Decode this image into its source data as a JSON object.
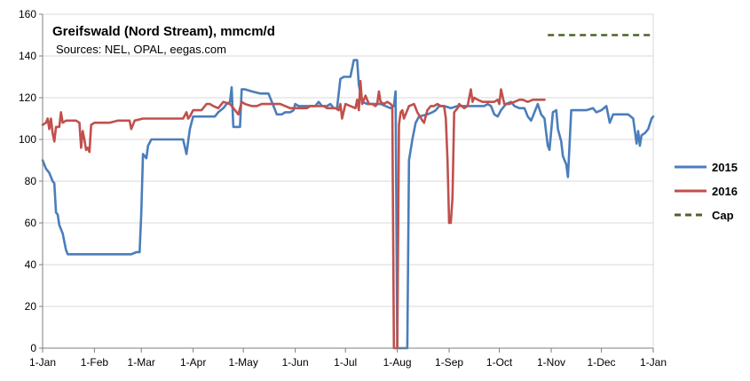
{
  "chart_data": {
    "type": "line",
    "title": "Greifswald (Nord Stream), mmcm/d",
    "subtitle": "Sources:  NEL, OPAL, eegas.com",
    "ylim": [
      0,
      160
    ],
    "yticks": [
      0,
      20,
      40,
      60,
      80,
      100,
      120,
      140,
      160
    ],
    "xlim": [
      0,
      365
    ],
    "xticks": [
      {
        "label": "1-Jan",
        "day": 0
      },
      {
        "label": "1-Feb",
        "day": 31
      },
      {
        "label": "1-Mar",
        "day": 59
      },
      {
        "label": "1-Apr",
        "day": 90
      },
      {
        "label": "1-May",
        "day": 120
      },
      {
        "label": "1-Jun",
        "day": 151
      },
      {
        "label": "1-Jul",
        "day": 181
      },
      {
        "label": "1-Aug",
        "day": 212
      },
      {
        "label": "1-Sep",
        "day": 243
      },
      {
        "label": "1-Oct",
        "day": 273
      },
      {
        "label": "1-Nov",
        "day": 304
      },
      {
        "label": "1-Dec",
        "day": 334
      },
      {
        "label": "1-Jan",
        "day": 365
      }
    ],
    "grid": "horizontal",
    "legend_position": "right",
    "series": [
      {
        "name": "2015",
        "color": "#4a7ebb",
        "dash": "solid",
        "points": [
          [
            0,
            90
          ],
          [
            2,
            86
          ],
          [
            4,
            84
          ],
          [
            6,
            80
          ],
          [
            7,
            79
          ],
          [
            8,
            65
          ],
          [
            9,
            64
          ],
          [
            10,
            59
          ],
          [
            12,
            55
          ],
          [
            14,
            47
          ],
          [
            15,
            45
          ],
          [
            20,
            45
          ],
          [
            25,
            45
          ],
          [
            30,
            45
          ],
          [
            35,
            45
          ],
          [
            40,
            45
          ],
          [
            45,
            45
          ],
          [
            50,
            45
          ],
          [
            53,
            45
          ],
          [
            56,
            46
          ],
          [
            58,
            46
          ],
          [
            59,
            65
          ],
          [
            60,
            93
          ],
          [
            62,
            91
          ],
          [
            63,
            97
          ],
          [
            65,
            100
          ],
          [
            70,
            100
          ],
          [
            75,
            100
          ],
          [
            80,
            100
          ],
          [
            84,
            100
          ],
          [
            86,
            93
          ],
          [
            88,
            105
          ],
          [
            90,
            111
          ],
          [
            95,
            111
          ],
          [
            100,
            111
          ],
          [
            103,
            111
          ],
          [
            105,
            113
          ],
          [
            108,
            115
          ],
          [
            110,
            117
          ],
          [
            112,
            118
          ],
          [
            113,
            125
          ],
          [
            114,
            106
          ],
          [
            116,
            106
          ],
          [
            118,
            106
          ],
          [
            119,
            124
          ],
          [
            121,
            124
          ],
          [
            125,
            123
          ],
          [
            130,
            122
          ],
          [
            133,
            122
          ],
          [
            135,
            122
          ],
          [
            140,
            112
          ],
          [
            143,
            112
          ],
          [
            145,
            113
          ],
          [
            148,
            113
          ],
          [
            150,
            114
          ],
          [
            151,
            117
          ],
          [
            153,
            116
          ],
          [
            155,
            116
          ],
          [
            160,
            116
          ],
          [
            163,
            116
          ],
          [
            165,
            118
          ],
          [
            167,
            116
          ],
          [
            170,
            116
          ],
          [
            172,
            117
          ],
          [
            174,
            115
          ],
          [
            176,
            115
          ],
          [
            178,
            129
          ],
          [
            180,
            130
          ],
          [
            184,
            130
          ],
          [
            186,
            138
          ],
          [
            188,
            138
          ],
          [
            189,
            126
          ],
          [
            191,
            118
          ],
          [
            194,
            117
          ],
          [
            198,
            117
          ],
          [
            202,
            117
          ],
          [
            205,
            116
          ],
          [
            208,
            115
          ],
          [
            210,
            116
          ],
          [
            211,
            123
          ],
          [
            212,
            0
          ],
          [
            216,
            0
          ],
          [
            218,
            0
          ],
          [
            219,
            90
          ],
          [
            221,
            100
          ],
          [
            223,
            108
          ],
          [
            225,
            111
          ],
          [
            230,
            112
          ],
          [
            233,
            113
          ],
          [
            235,
            114
          ],
          [
            237,
            116
          ],
          [
            240,
            116
          ],
          [
            244,
            115
          ],
          [
            248,
            116
          ],
          [
            252,
            116
          ],
          [
            256,
            116
          ],
          [
            260,
            116
          ],
          [
            264,
            116
          ],
          [
            266,
            117
          ],
          [
            268,
            116
          ],
          [
            270,
            112
          ],
          [
            272,
            111
          ],
          [
            274,
            114
          ],
          [
            277,
            117
          ],
          [
            280,
            118
          ],
          [
            282,
            116
          ],
          [
            285,
            115
          ],
          [
            288,
            115
          ],
          [
            290,
            111
          ],
          [
            292,
            109
          ],
          [
            294,
            113
          ],
          [
            296,
            117
          ],
          [
            298,
            112
          ],
          [
            300,
            110
          ],
          [
            301,
            103
          ],
          [
            302,
            97
          ],
          [
            303,
            95
          ],
          [
            305,
            113
          ],
          [
            307,
            114
          ],
          [
            308,
            105
          ],
          [
            310,
            99
          ],
          [
            311,
            92
          ],
          [
            312,
            90
          ],
          [
            313,
            88
          ],
          [
            314,
            82
          ],
          [
            316,
            114
          ],
          [
            320,
            114
          ],
          [
            325,
            114
          ],
          [
            329,
            115
          ],
          [
            331,
            113
          ],
          [
            334,
            114
          ],
          [
            337,
            116
          ],
          [
            339,
            108
          ],
          [
            341,
            112
          ],
          [
            345,
            112
          ],
          [
            350,
            112
          ],
          [
            353,
            110
          ],
          [
            355,
            98
          ],
          [
            356,
            104
          ],
          [
            357,
            97
          ],
          [
            358,
            102
          ],
          [
            360,
            103
          ],
          [
            362,
            105
          ],
          [
            364,
            110
          ],
          [
            365,
            111
          ]
        ]
      },
      {
        "name": "2016",
        "color": "#c0504d",
        "dash": "solid",
        "points": [
          [
            0,
            107
          ],
          [
            2,
            108
          ],
          [
            3,
            110
          ],
          [
            4,
            105
          ],
          [
            5,
            110
          ],
          [
            6,
            103
          ],
          [
            7,
            99
          ],
          [
            8,
            106
          ],
          [
            10,
            106
          ],
          [
            11,
            113
          ],
          [
            12,
            108
          ],
          [
            14,
            109
          ],
          [
            18,
            109
          ],
          [
            20,
            109
          ],
          [
            22,
            108
          ],
          [
            23,
            96
          ],
          [
            24,
            104
          ],
          [
            25,
            100
          ],
          [
            26,
            95
          ],
          [
            27,
            96
          ],
          [
            28,
            94
          ],
          [
            29,
            107
          ],
          [
            31,
            108
          ],
          [
            35,
            108
          ],
          [
            40,
            108
          ],
          [
            45,
            109
          ],
          [
            50,
            109
          ],
          [
            52,
            109
          ],
          [
            53,
            105
          ],
          [
            55,
            109
          ],
          [
            60,
            110
          ],
          [
            65,
            110
          ],
          [
            70,
            110
          ],
          [
            75,
            110
          ],
          [
            80,
            110
          ],
          [
            84,
            110
          ],
          [
            86,
            113
          ],
          [
            87,
            110
          ],
          [
            88,
            111
          ],
          [
            90,
            114
          ],
          [
            92,
            114
          ],
          [
            95,
            114
          ],
          [
            98,
            117
          ],
          [
            100,
            117
          ],
          [
            102,
            116
          ],
          [
            105,
            115
          ],
          [
            108,
            118
          ],
          [
            112,
            117
          ],
          [
            115,
            114
          ],
          [
            117,
            112
          ],
          [
            119,
            118
          ],
          [
            121,
            117
          ],
          [
            125,
            116
          ],
          [
            128,
            116
          ],
          [
            131,
            117
          ],
          [
            134,
            117
          ],
          [
            137,
            117
          ],
          [
            140,
            117
          ],
          [
            142,
            117
          ],
          [
            145,
            116
          ],
          [
            148,
            115
          ],
          [
            150,
            115
          ],
          [
            152,
            115
          ],
          [
            155,
            115
          ],
          [
            158,
            115
          ],
          [
            160,
            116
          ],
          [
            163,
            116
          ],
          [
            166,
            116
          ],
          [
            168,
            116
          ],
          [
            170,
            115
          ],
          [
            172,
            115
          ],
          [
            175,
            115
          ],
          [
            177,
            114
          ],
          [
            178,
            117
          ],
          [
            179,
            110
          ],
          [
            181,
            117
          ],
          [
            184,
            116
          ],
          [
            187,
            115
          ],
          [
            188,
            119
          ],
          [
            189,
            114
          ],
          [
            190,
            128
          ],
          [
            191,
            117
          ],
          [
            193,
            121
          ],
          [
            195,
            117
          ],
          [
            197,
            117
          ],
          [
            199,
            116
          ],
          [
            200,
            117
          ],
          [
            201,
            123
          ],
          [
            202,
            118
          ],
          [
            204,
            117
          ],
          [
            206,
            118
          ],
          [
            208,
            117
          ],
          [
            209,
            116
          ],
          [
            210,
            0
          ],
          [
            212,
            0
          ],
          [
            213,
            107
          ],
          [
            214,
            113
          ],
          [
            215,
            114
          ],
          [
            216,
            110
          ],
          [
            217,
            112
          ],
          [
            219,
            116
          ],
          [
            222,
            117
          ],
          [
            224,
            113
          ],
          [
            227,
            109
          ],
          [
            228,
            108
          ],
          [
            229,
            111
          ],
          [
            230,
            114
          ],
          [
            232,
            116
          ],
          [
            234,
            116
          ],
          [
            236,
            117
          ],
          [
            238,
            116
          ],
          [
            240,
            116
          ],
          [
            241,
            110
          ],
          [
            242,
            90
          ],
          [
            243,
            60
          ],
          [
            244,
            60
          ],
          [
            245,
            72
          ],
          [
            246,
            113
          ],
          [
            248,
            115
          ],
          [
            249,
            117
          ],
          [
            252,
            115
          ],
          [
            254,
            116
          ],
          [
            256,
            124
          ],
          [
            257,
            118
          ],
          [
            258,
            120
          ],
          [
            260,
            119
          ],
          [
            263,
            118
          ],
          [
            265,
            118
          ],
          [
            268,
            118
          ],
          [
            270,
            118
          ],
          [
            272,
            119
          ],
          [
            273,
            117
          ],
          [
            274,
            124
          ],
          [
            276,
            117
          ],
          [
            279,
            117
          ],
          [
            282,
            118
          ],
          [
            285,
            119
          ],
          [
            287,
            119
          ],
          [
            290,
            118
          ],
          [
            293,
            119
          ],
          [
            297,
            119
          ],
          [
            300,
            119
          ]
        ]
      },
      {
        "name": "Cap",
        "color": "#4f6228",
        "dash": "dashed",
        "points": [
          [
            302,
            150
          ],
          [
            365,
            150
          ]
        ]
      }
    ]
  }
}
